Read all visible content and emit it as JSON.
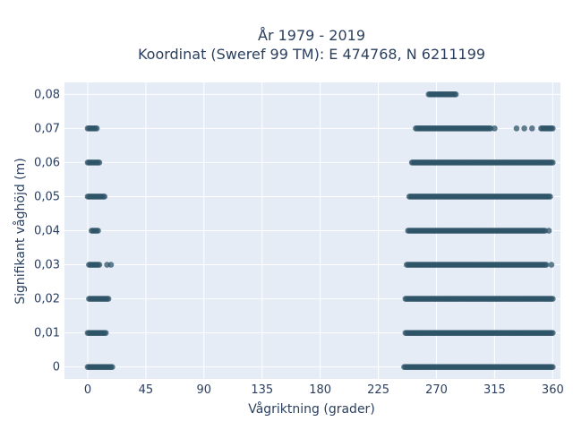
{
  "chart_data": {
    "type": "scatter",
    "title_line1": "År 1979 - 2019",
    "title_line2": "Koordinat (Sweref 99 TM): E 474768, N 6211199",
    "xlabel": "Vågriktning (grader)",
    "ylabel": "Signifikant våghöjd (m)",
    "xlim": [
      -18,
      366
    ],
    "ylim": [
      -0.0035,
      0.0835
    ],
    "x_ticks": [
      0,
      45,
      90,
      135,
      180,
      225,
      270,
      315,
      360
    ],
    "x_tick_labels": [
      "0",
      "45",
      "90",
      "135",
      "180",
      "225",
      "270",
      "315",
      "360"
    ],
    "y_ticks": [
      0,
      0.01,
      0.02,
      0.03,
      0.04,
      0.05,
      0.06,
      0.07,
      0.08
    ],
    "y_tick_labels": [
      "0",
      "0,01",
      "0,02",
      "0,03",
      "0,04",
      "0,05",
      "0,06",
      "0,07",
      "0,08"
    ],
    "grid": true,
    "marker_color": "#2f5468",
    "background_color": "#e5ecf6",
    "series": [
      {
        "clusters": [
          {
            "y": 0,
            "x_from": 0,
            "x_to": 18
          },
          {
            "y": 0,
            "x_from": 245,
            "x_to": 360
          },
          {
            "y": 0.01,
            "x_from": 0,
            "x_to": 14
          },
          {
            "y": 0.01,
            "x_from": 246,
            "x_to": 360
          },
          {
            "y": 0.02,
            "x_from": 1,
            "x_to": 16
          },
          {
            "y": 0.02,
            "x_from": 246,
            "x_to": 360
          },
          {
            "y": 0.03,
            "x_from": 1,
            "x_to": 9
          },
          {
            "y": 0.03,
            "x_from": 247,
            "x_to": 355
          },
          {
            "y": 0.04,
            "x_from": 3,
            "x_to": 8
          },
          {
            "y": 0.04,
            "x_from": 248,
            "x_to": 354
          },
          {
            "y": 0.05,
            "x_from": 0,
            "x_to": 12
          },
          {
            "y": 0.05,
            "x_from": 249,
            "x_to": 358
          },
          {
            "y": 0.06,
            "x_from": 0,
            "x_to": 9
          },
          {
            "y": 0.06,
            "x_from": 251,
            "x_to": 360
          },
          {
            "y": 0.07,
            "x_from": 0,
            "x_to": 7
          },
          {
            "y": 0.07,
            "x_from": 254,
            "x_to": 312
          },
          {
            "y": 0.07,
            "x_from": 351,
            "x_to": 360
          },
          {
            "y": 0.08,
            "x_from": 264,
            "x_to": 285
          }
        ],
        "points": [
          {
            "x": 19,
            "y": 0
          },
          {
            "x": 15,
            "y": 0.03
          },
          {
            "x": 18,
            "y": 0.03
          },
          {
            "x": 13,
            "y": 0.05
          },
          {
            "x": 315,
            "y": 0.07
          },
          {
            "x": 332,
            "y": 0.07
          },
          {
            "x": 338,
            "y": 0.07
          },
          {
            "x": 344,
            "y": 0.07
          },
          {
            "x": 359,
            "y": 0.03
          },
          {
            "x": 357,
            "y": 0.04
          }
        ]
      }
    ]
  }
}
